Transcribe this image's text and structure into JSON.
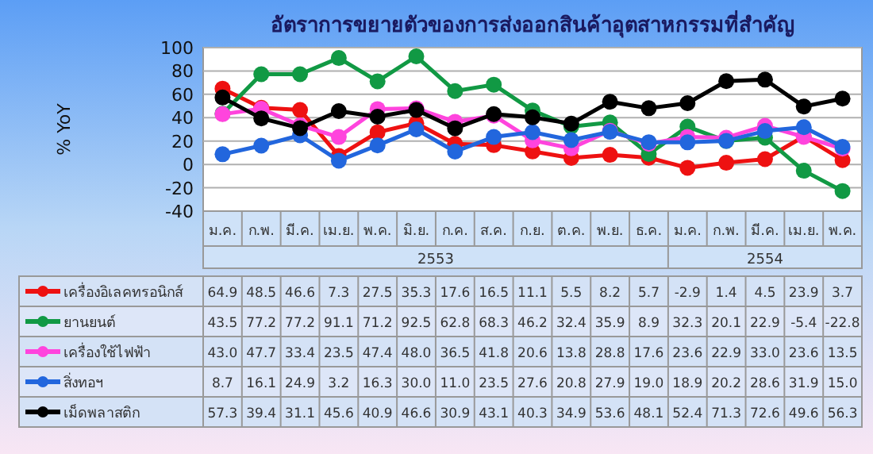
{
  "chart_data": {
    "type": "line",
    "title": "อัตราการขยายตัวของการส่งออกสินค้าอุตสาหกรรมที่สำคัญ",
    "ylabel": "% YoY",
    "categories": [
      "ม.ค.",
      "ก.พ.",
      "มี.ค.",
      "เม.ย.",
      "พ.ค.",
      "มิ.ย.",
      "ก.ค.",
      "ส.ค.",
      "ก.ย.",
      "ต.ค.",
      "พ.ย.",
      "ธ.ค.",
      "ม.ค.",
      "ก.พ.",
      "มี.ค.",
      "เม.ย.",
      "พ.ค."
    ],
    "annotations": [
      "2553",
      "2554"
    ],
    "series": [
      {
        "name": "เครื่องอิเลคทรอนิกส์",
        "color": "#ee1111",
        "values": [
          64.9,
          48.5,
          46.6,
          7.3,
          27.5,
          35.3,
          17.6,
          16.5,
          11.1,
          5.5,
          8.2,
          5.7,
          -2.9,
          1.4,
          4.5,
          23.9,
          3.7
        ],
        "value_labels": [
          "64.9",
          "48.5",
          "46.6",
          "7.3",
          "27.5",
          "35.3",
          "17.6",
          "16.5",
          "11.1",
          "5.5",
          "8.2",
          "5.7",
          "-2.9",
          "1.4",
          "4.5",
          "23.9",
          "3.7"
        ]
      },
      {
        "name": "ยานยนต์",
        "color": "#119944",
        "values": [
          43.5,
          77.2,
          77.2,
          91.1,
          71.2,
          92.5,
          62.8,
          68.3,
          46.2,
          32.4,
          35.9,
          8.9,
          32.3,
          20.1,
          22.9,
          -5.4,
          -22.8
        ],
        "value_labels": [
          "43.5",
          "77.2",
          "77.2",
          "91.1",
          "71.2",
          "92.5",
          "62.8",
          "68.3",
          "46.2",
          "32.4",
          "35.9",
          "8.9",
          "32.3",
          "20.1",
          "22.9",
          "-5.4",
          "-22.8"
        ]
      },
      {
        "name": "เครื่องใช้ไฟฟ้า",
        "color": "#ff44dd",
        "values": [
          43.0,
          47.7,
          33.4,
          23.5,
          47.4,
          48.0,
          36.5,
          41.8,
          20.6,
          13.8,
          28.8,
          17.6,
          23.6,
          22.9,
          33.0,
          23.6,
          13.5
        ],
        "value_labels": [
          "43.0",
          "47.7",
          "33.4",
          "23.5",
          "47.4",
          "48.0",
          "36.5",
          "41.8",
          "20.6",
          "13.8",
          "28.8",
          "17.6",
          "23.6",
          "22.9",
          "33.0",
          "23.6",
          "13.5"
        ]
      },
      {
        "name": "สิ่งทอฯ",
        "color": "#2266dd",
        "values": [
          8.7,
          16.1,
          24.9,
          3.2,
          16.3,
          30.0,
          11.0,
          23.5,
          27.6,
          20.8,
          27.9,
          19.0,
          18.9,
          20.2,
          28.6,
          31.9,
          15.0
        ],
        "value_labels": [
          "8.7",
          "16.1",
          "24.9",
          "3.2",
          "16.3",
          "30.0",
          "11.0",
          "23.5",
          "27.6",
          "20.8",
          "27.9",
          "19.0",
          "18.9",
          "20.2",
          "28.6",
          "31.9",
          "15.0"
        ]
      },
      {
        "name": "เม็ดพลาสติก",
        "color": "#000000",
        "values": [
          57.3,
          39.4,
          31.1,
          45.6,
          40.9,
          46.6,
          30.9,
          43.1,
          40.3,
          34.9,
          53.6,
          48.1,
          52.4,
          71.3,
          72.6,
          49.6,
          56.3
        ],
        "value_labels": [
          "57.3",
          "39.4",
          "31.1",
          "45.6",
          "40.9",
          "46.6",
          "30.9",
          "43.1",
          "40.3",
          "34.9",
          "53.6",
          "48.1",
          "52.4",
          "71.3",
          "72.6",
          "49.6",
          "56.3"
        ]
      }
    ],
    "ylim": [
      -40,
      100
    ],
    "yticks": [
      -40,
      -20,
      0,
      20,
      40,
      60,
      80,
      100
    ],
    "grid": "y",
    "marker": "circle",
    "line_style": "solid",
    "legend": "bottom"
  }
}
